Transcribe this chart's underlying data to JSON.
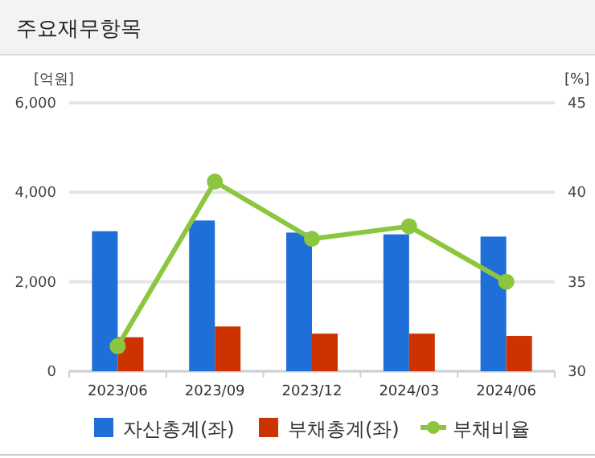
{
  "chart_data": {
    "type": "bar",
    "title": "주요재무항목",
    "ylabel": "[억원]",
    "y2label": "[%]",
    "categories": [
      "2023/06",
      "2023/09",
      "2023/12",
      "2024/03",
      "2024/06"
    ],
    "series": [
      {
        "name": "자산총계(좌)",
        "color": "#1f6fd8",
        "values": [
          3130,
          3370,
          3100,
          3060,
          3010
        ]
      },
      {
        "name": "부채총계(좌)",
        "color": "#cc3300",
        "values": [
          760,
          1000,
          840,
          840,
          790
        ]
      },
      {
        "name": "부채비율",
        "type": "line",
        "axis": "y2",
        "color": "#8cc63f",
        "marker": "circle",
        "values": [
          31.4,
          40.6,
          37.4,
          38.1,
          35.0
        ]
      }
    ],
    "ylim": [
      0,
      6000
    ],
    "yticks": [
      {
        "value": 0,
        "label": "0"
      },
      {
        "value": 2000,
        "label": "2,000"
      },
      {
        "value": 4000,
        "label": "4,000"
      },
      {
        "value": 6000,
        "label": "6,000"
      }
    ],
    "y2lim": [
      30,
      45
    ],
    "y2ticks": [
      30,
      35,
      40,
      45
    ],
    "grid": "y",
    "legend": "bottom"
  }
}
